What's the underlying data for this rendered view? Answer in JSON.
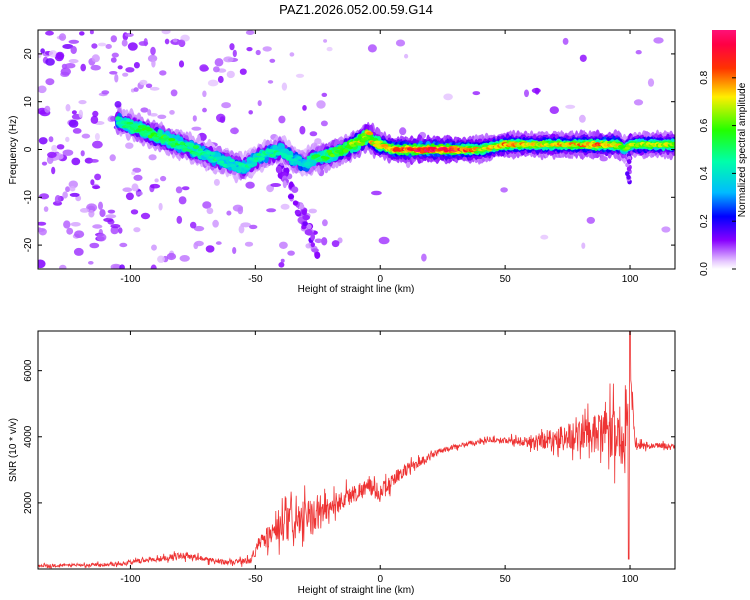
{
  "title": "PAZ1.2026.052.00.59.G14",
  "chart_data": [
    {
      "type": "heatmap",
      "xlabel": "Height of straight line (km)",
      "ylabel": "Frequency (Hz)",
      "xlim": [
        -137,
        118
      ],
      "ylim": [
        -25,
        25
      ],
      "x_ticks": [
        -100,
        -50,
        0,
        50,
        100
      ],
      "y_ticks": [
        -20,
        -10,
        0,
        10,
        20
      ],
      "x_tick_labels": [
        "-100",
        "-50",
        "0",
        "50",
        "100"
      ],
      "y_tick_labels": [
        "-20",
        "-10",
        "0",
        "10",
        "20"
      ],
      "colorbar": {
        "label": "Normalized spectral amplitude",
        "range": [
          0,
          1
        ],
        "ticks": [
          0.0,
          0.2,
          0.4,
          0.6,
          0.8
        ],
        "tick_labels": [
          "0.0",
          "0.2",
          "0.4",
          "0.6",
          "0.8"
        ]
      },
      "ridge": {
        "x": [
          -105,
          -100,
          -95,
          -90,
          -85,
          -80,
          -75,
          -70,
          -65,
          -60,
          -55,
          -50,
          -45,
          -40,
          -35,
          -30,
          -27,
          -20,
          -15,
          -10,
          -5,
          -3,
          0,
          5,
          10,
          20,
          30,
          40,
          50,
          60,
          70,
          80,
          90,
          95,
          98,
          100,
          105,
          110,
          118
        ],
        "y": [
          6,
          5,
          4,
          3,
          2,
          1,
          0,
          -1,
          -2,
          -3,
          -4,
          -2,
          -1,
          0,
          -2,
          -3,
          -2,
          -1,
          0,
          1,
          3,
          2,
          1,
          0,
          0,
          0,
          0,
          0,
          1,
          1,
          1,
          1,
          1,
          1,
          0,
          1,
          1,
          1,
          1
        ],
        "strength": [
          0.35,
          0.4,
          0.45,
          0.45,
          0.45,
          0.4,
          0.4,
          0.35,
          0.35,
          0.3,
          0.35,
          0.35,
          0.35,
          0.35,
          0.3,
          0.3,
          0.4,
          0.45,
          0.5,
          0.55,
          0.6,
          0.6,
          0.65,
          0.7,
          0.75,
          0.85,
          0.8,
          0.6,
          0.65,
          0.6,
          0.6,
          0.65,
          0.7,
          0.65,
          0.45,
          0.55,
          0.55,
          0.55,
          0.55
        ]
      }
    },
    {
      "type": "line",
      "xlabel": "Height of straight line (km)",
      "ylabel": "SNR (10 * v/v)",
      "xlim": [
        -137,
        118
      ],
      "ylim": [
        0,
        7200
      ],
      "x_ticks": [
        -100,
        -50,
        0,
        50,
        100
      ],
      "y_ticks": [
        2000,
        4000,
        6000
      ],
      "x_tick_labels": [
        "-100",
        "-50",
        "0",
        "50",
        "100"
      ],
      "y_tick_labels": [
        "2000",
        "4000",
        "6000"
      ],
      "color": "#ee3333",
      "series": [
        {
          "name": "SNR",
          "x": [
            -137,
            -120,
            -105,
            -95,
            -85,
            -78,
            -70,
            -60,
            -52,
            -48,
            -45,
            -40,
            -35,
            -30,
            -25,
            -20,
            -15,
            -10,
            -5,
            0,
            5,
            10,
            15,
            20,
            25,
            30,
            35,
            40,
            45,
            50,
            55,
            60,
            65,
            70,
            75,
            80,
            85,
            90,
            95,
            98,
            100,
            102,
            105,
            110,
            118
          ],
          "y": [
            100,
            120,
            150,
            250,
            350,
            420,
            280,
            200,
            250,
            800,
            1000,
            1200,
            1400,
            1500,
            1600,
            1900,
            2100,
            2300,
            2500,
            2300,
            2700,
            3000,
            3200,
            3400,
            3600,
            3700,
            3800,
            3850,
            3900,
            3900,
            3850,
            3850,
            3900,
            3950,
            4000,
            4050,
            4050,
            4100,
            4100,
            3900,
            6600,
            3700,
            3750,
            3750,
            3700
          ],
          "noise": [
            60,
            60,
            80,
            100,
            120,
            150,
            120,
            100,
            150,
            300,
            500,
            700,
            800,
            800,
            700,
            500,
            450,
            400,
            350,
            400,
            300,
            250,
            200,
            150,
            120,
            100,
            100,
            100,
            100,
            120,
            200,
            300,
            400,
            500,
            600,
            700,
            800,
            1000,
            1200,
            1500,
            800,
            250,
            150,
            120,
            100
          ]
        }
      ]
    }
  ]
}
